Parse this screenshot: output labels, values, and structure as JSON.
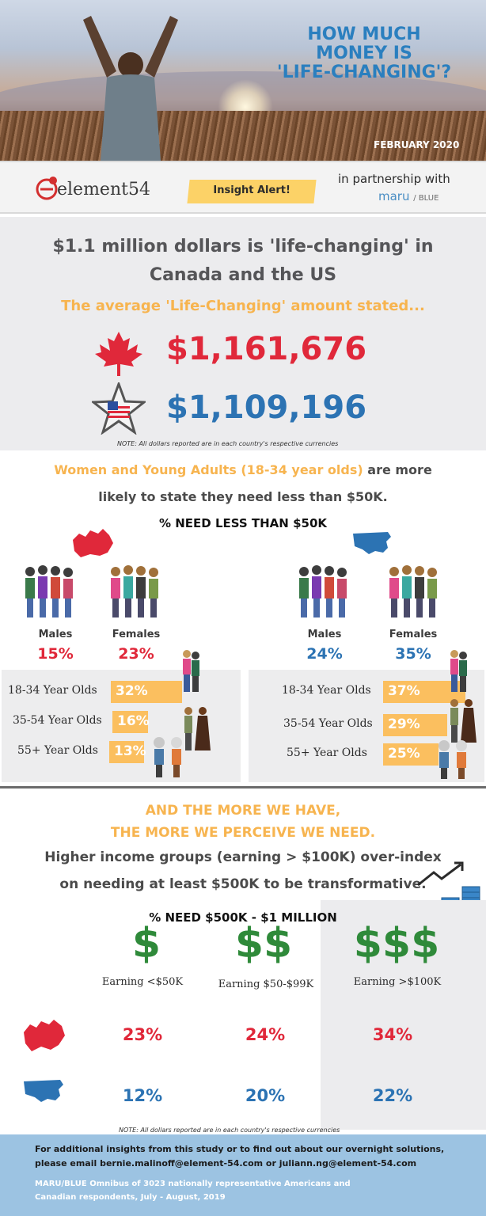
{
  "hero": {
    "title_line1": "HOW MUCH",
    "title_line2": "MONEY IS",
    "title_line3": "'LIFE-CHANGING'?",
    "date": "FEBRUARY 2020"
  },
  "banner": {
    "logo_text": "element54",
    "insight_label": "Insight Alert!",
    "partner_text": "in partnership with",
    "partner_brand": "maru",
    "partner_brand_suffix": "/ BLUE"
  },
  "section1": {
    "headline_line1": "$1.1 million dollars is 'life-changing' in",
    "headline_line2": "Canada and the US",
    "subhead": "The average  'Life-Changing' amount stated...",
    "canada_amount": "$1,161,676",
    "us_amount": "$1,109,196",
    "note": "NOTE: All dollars reported are in each country's respective currencies"
  },
  "section2": {
    "title_highlight": "Women and Young Adults (18-34 year olds)",
    "title_rest1": " are more",
    "title_rest2": "likely to state they need less than $50K.",
    "chart_title": "% NEED LESS THAN $50K",
    "canada": {
      "males_label": "Males",
      "males_pct": "15%",
      "females_label": "Females",
      "females_pct": "23%",
      "ages": [
        {
          "label": "18-34 Year Olds",
          "pct": "32%",
          "value": 32
        },
        {
          "label": "35-54 Year Olds",
          "pct": "16%",
          "value": 16
        },
        {
          "label": "55+ Year Olds",
          "pct": "13%",
          "value": 13
        }
      ]
    },
    "us": {
      "males_label": "Males",
      "males_pct": "24%",
      "females_label": "Females",
      "females_pct": "35%",
      "ages": [
        {
          "label": "18-34 Year Olds",
          "pct": "37%",
          "value": 37
        },
        {
          "label": "35-54 Year Olds",
          "pct": "29%",
          "value": 29
        },
        {
          "label": "55+ Year Olds",
          "pct": "25%",
          "value": 25
        }
      ]
    }
  },
  "section3": {
    "head_line1": "AND THE MORE WE HAVE,",
    "head_line2": "THE MORE WE PERCEIVE WE NEED.",
    "sub_line1": "Higher income groups (earning > $100K) over-index",
    "sub_line2": "on needing at least $500K to be transformative.",
    "chart_title": "% NEED  $500K - $1 MILLION",
    "groups": [
      {
        "symbol": "$",
        "label": "Earning <$50K",
        "canada": "23%",
        "us": "12%"
      },
      {
        "symbol": "$$",
        "label": "Earning $50-$99K",
        "canada": "24%",
        "us": "20%"
      },
      {
        "symbol": "$$$",
        "label": "Earning >$100K",
        "canada": "34%",
        "us": "22%"
      }
    ],
    "note": "NOTE: All dollars reported are in each country's respective currencies"
  },
  "footer": {
    "line1": "For additional insights from this study or to find out about our overnight solutions,",
    "line2": "please email bernie.malinoff@element-54.com or juliann.ng@element-54.com",
    "line3": "MARU/BLUE Omnibus of  3023 nationally representative  Americans and",
    "line4": "Canadian respondents, July - August, 2019"
  },
  "colors": {
    "accent_orange": "#f7b44f",
    "canada_red": "#e0283a",
    "us_blue": "#2c73b3",
    "money_green": "#2f8a3a",
    "bar_orange": "#fbbf5f"
  }
}
